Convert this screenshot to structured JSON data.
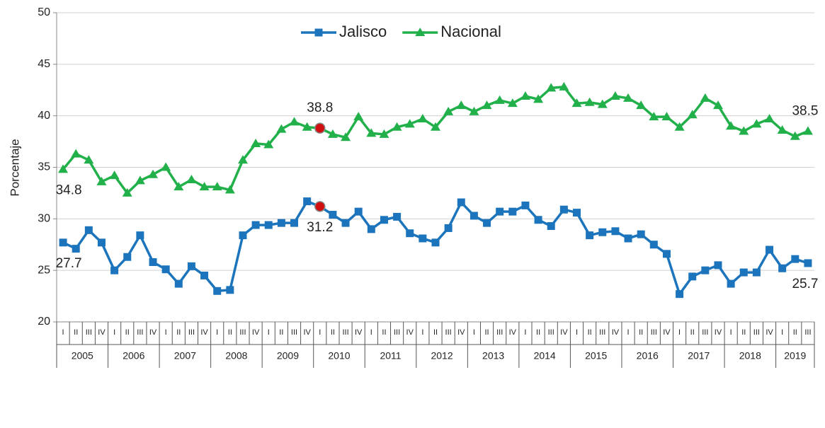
{
  "chart_data": {
    "type": "line",
    "y_label": "Porcentaje",
    "categories": [
      "I",
      "II",
      "III",
      "IV",
      "I",
      "II",
      "III",
      "IV",
      "I",
      "II",
      "III",
      "IV",
      "I",
      "II",
      "III",
      "IV",
      "I",
      "II",
      "III",
      "IV",
      "I",
      "II",
      "III",
      "IV",
      "I",
      "II",
      "III",
      "IV",
      "I",
      "II",
      "III",
      "IV",
      "I",
      "II",
      "III",
      "IV",
      "I",
      "II",
      "III",
      "IV",
      "I",
      "II",
      "III",
      "IV",
      "I",
      "II",
      "III",
      "IV",
      "I",
      "II",
      "III",
      "IV",
      "I",
      "II",
      "III",
      "IV",
      "I",
      "II",
      "III"
    ],
    "years": [
      "2005",
      "2006",
      "2007",
      "2008",
      "2009",
      "2010",
      "2011",
      "2012",
      "2013",
      "2014",
      "2015",
      "2016",
      "2017",
      "2018",
      "2019"
    ],
    "series": [
      {
        "name": "Jalisco",
        "color": "#1c75bc",
        "marker": "square",
        "labeled_points": [
          0,
          20,
          58
        ],
        "highlight_points": [
          20
        ],
        "values": [
          27.7,
          27.1,
          28.9,
          27.7,
          25.0,
          26.3,
          28.4,
          25.8,
          25.1,
          23.7,
          25.4,
          24.5,
          23.0,
          23.1,
          28.4,
          29.4,
          29.4,
          29.6,
          29.6,
          31.7,
          31.2,
          30.4,
          29.6,
          30.7,
          29.0,
          29.9,
          30.2,
          28.6,
          28.1,
          27.7,
          29.1,
          31.6,
          30.3,
          29.6,
          30.7,
          30.7,
          31.3,
          29.9,
          29.3,
          30.9,
          30.6,
          28.4,
          28.7,
          28.8,
          28.1,
          28.5,
          27.5,
          26.6,
          22.7,
          24.4,
          25.0,
          25.5,
          23.7,
          24.8,
          24.8,
          27.0,
          25.2,
          26.1,
          25.7
        ]
      },
      {
        "name": "Nacional",
        "color": "#22b04b",
        "marker": "triangle",
        "labeled_points": [
          0,
          20,
          58
        ],
        "highlight_points": [
          20
        ],
        "values": [
          34.8,
          36.3,
          35.7,
          33.6,
          34.2,
          32.5,
          33.7,
          34.3,
          35.0,
          33.1,
          33.8,
          33.1,
          33.1,
          32.8,
          35.7,
          37.3,
          37.2,
          38.7,
          39.4,
          38.9,
          38.8,
          38.2,
          37.9,
          39.9,
          38.3,
          38.2,
          38.9,
          39.2,
          39.7,
          38.9,
          40.4,
          41.0,
          40.4,
          41.0,
          41.5,
          41.2,
          41.9,
          41.6,
          42.7,
          42.8,
          41.2,
          41.3,
          41.1,
          41.9,
          41.7,
          41.0,
          39.9,
          39.9,
          38.9,
          40.1,
          41.7,
          41.0,
          39.0,
          38.5,
          39.2,
          39.7,
          38.6,
          38.0,
          38.5
        ]
      }
    ],
    "ylim": [
      20,
      50
    ],
    "yticks": [
      20,
      25,
      30,
      35,
      40,
      45,
      50
    ],
    "grid": true,
    "legend": "top"
  }
}
